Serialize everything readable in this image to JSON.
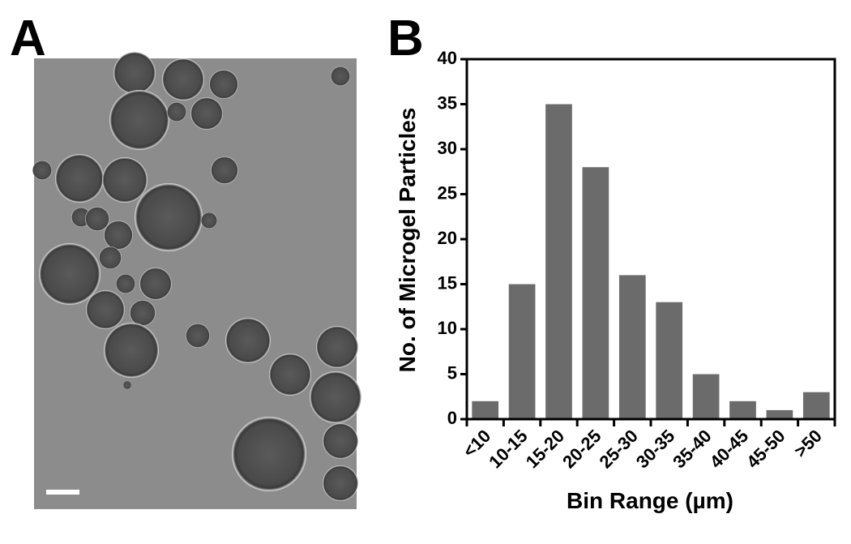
{
  "panel_labels": [
    "A",
    "B"
  ],
  "chart_data": {
    "type": "bar",
    "x_label": "Bin Range (µm)",
    "y_label": "No. of Microgel Particles",
    "categories": [
      "<10",
      "10-15",
      "15-20",
      "20-25",
      "25-30",
      "30-35",
      "35-40",
      "40-45",
      "45-50",
      ">50"
    ],
    "values": [
      2,
      15,
      35,
      28,
      16,
      13,
      5,
      2,
      1,
      3
    ],
    "color": "#6b6b6b",
    "ylim": [
      0,
      40
    ],
    "yticks": [
      0,
      5,
      10,
      15,
      20,
      25,
      30,
      35,
      40
    ],
    "grid": false
  }
}
